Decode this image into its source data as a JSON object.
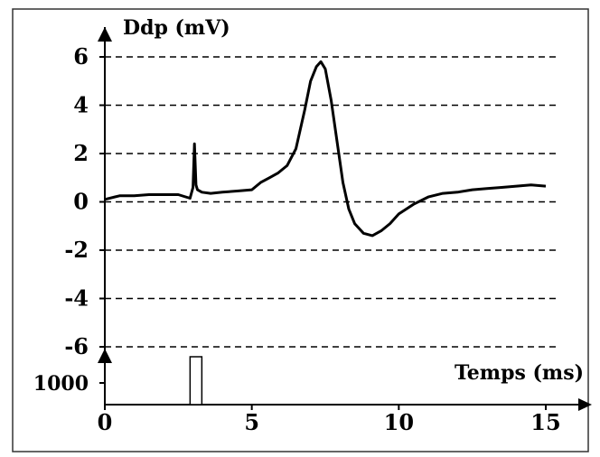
{
  "chart_data": {
    "type": "line",
    "ylabel": "Ddp (mV)",
    "xlabel": "Temps (ms)",
    "xlim": [
      0,
      15
    ],
    "ylim": [
      -6.5,
      6.5
    ],
    "x_ticks": [
      "0",
      "5",
      "10",
      "15"
    ],
    "y_ticks": [
      "6",
      "4",
      "2",
      "0",
      "-2",
      "-4",
      "-6"
    ],
    "gridlines_y": [
      6,
      4,
      2,
      0,
      -2,
      -4,
      -6
    ],
    "grid": "dashed horizontal",
    "series": [
      {
        "x": [
          0,
          0.5,
          1.0,
          1.5,
          2.0,
          2.5,
          2.9,
          3.0,
          3.05,
          3.1,
          3.15,
          3.3,
          3.6,
          4.0,
          4.5,
          5.0,
          5.3,
          5.6,
          5.9,
          6.2,
          6.5,
          6.8,
          7.0,
          7.2,
          7.35,
          7.5,
          7.7,
          7.9,
          8.1,
          8.3,
          8.5,
          8.8,
          9.1,
          9.4,
          9.7,
          10.0,
          10.5,
          11.0,
          11.5,
          12.0,
          12.5,
          13.0,
          13.5,
          14.0,
          14.5,
          15.0
        ],
        "y": [
          0.1,
          0.25,
          0.25,
          0.3,
          0.3,
          0.3,
          0.15,
          0.6,
          2.4,
          0.7,
          0.5,
          0.4,
          0.35,
          0.4,
          0.45,
          0.5,
          0.8,
          1.0,
          1.2,
          1.5,
          2.2,
          3.8,
          5.0,
          5.6,
          5.8,
          5.5,
          4.2,
          2.5,
          0.8,
          -0.3,
          -0.9,
          -1.3,
          -1.4,
          -1.2,
          -0.9,
          -0.5,
          -0.1,
          0.2,
          0.35,
          0.4,
          0.5,
          0.55,
          0.6,
          0.65,
          0.7,
          0.65
        ]
      }
    ],
    "stimulus": {
      "label": "1000",
      "pulse_start_ms": 2.9,
      "pulse_end_ms": 3.3
    }
  }
}
